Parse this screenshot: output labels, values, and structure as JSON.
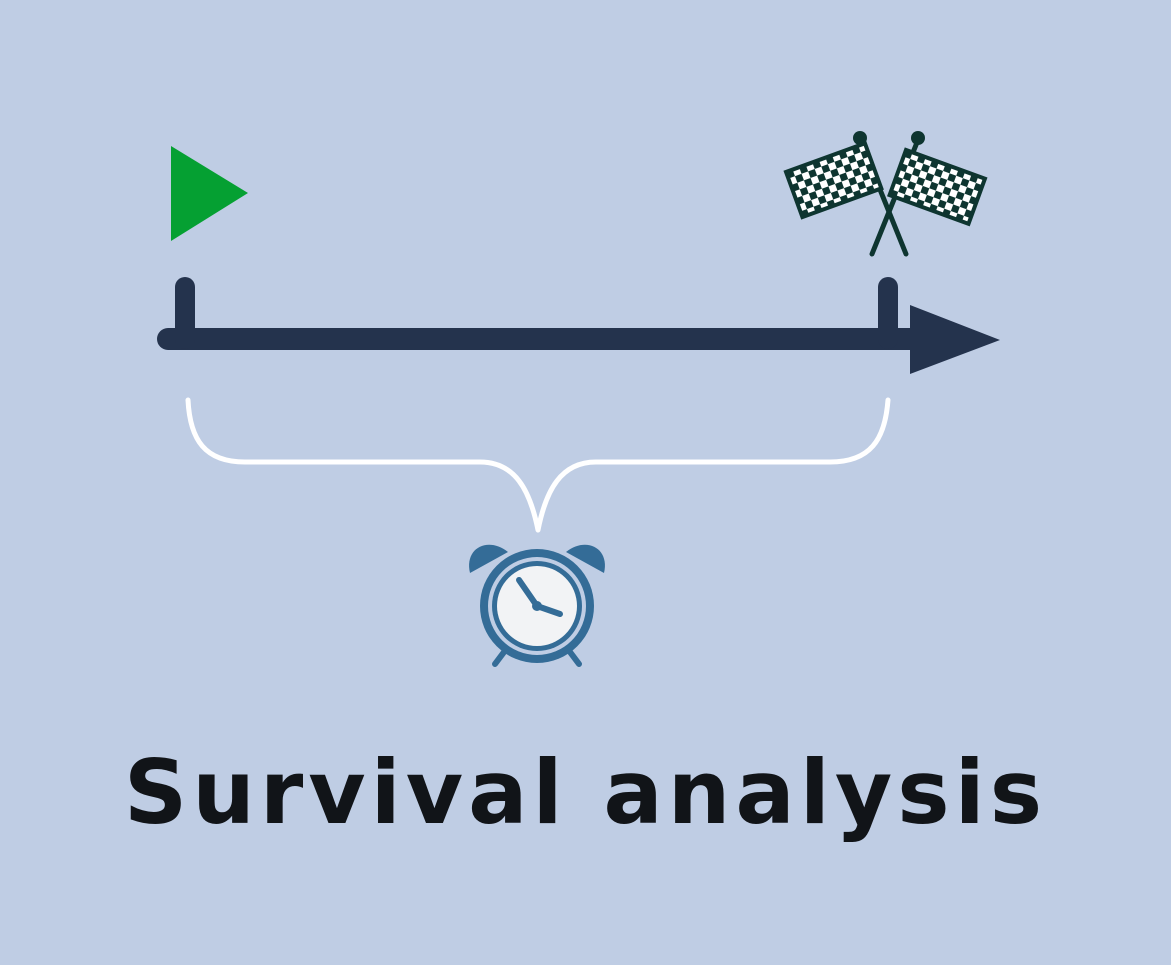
{
  "diagram": {
    "caption": "Survival analysis",
    "elements": {
      "start_marker": "play-triangle-icon",
      "end_marker": "checkered-flags-icon",
      "time_axis": "arrow-right",
      "interval": "curly-brace",
      "duration_symbol": "alarm-clock-icon"
    },
    "colors": {
      "background": "#bfcde4",
      "start_marker": "#05a032",
      "axis": "#24334d",
      "flags": "#0e3530",
      "brace": "#ffffff",
      "clock": "#346c97",
      "clock_face": "#f2f3f5",
      "caption": "#111418"
    }
  }
}
